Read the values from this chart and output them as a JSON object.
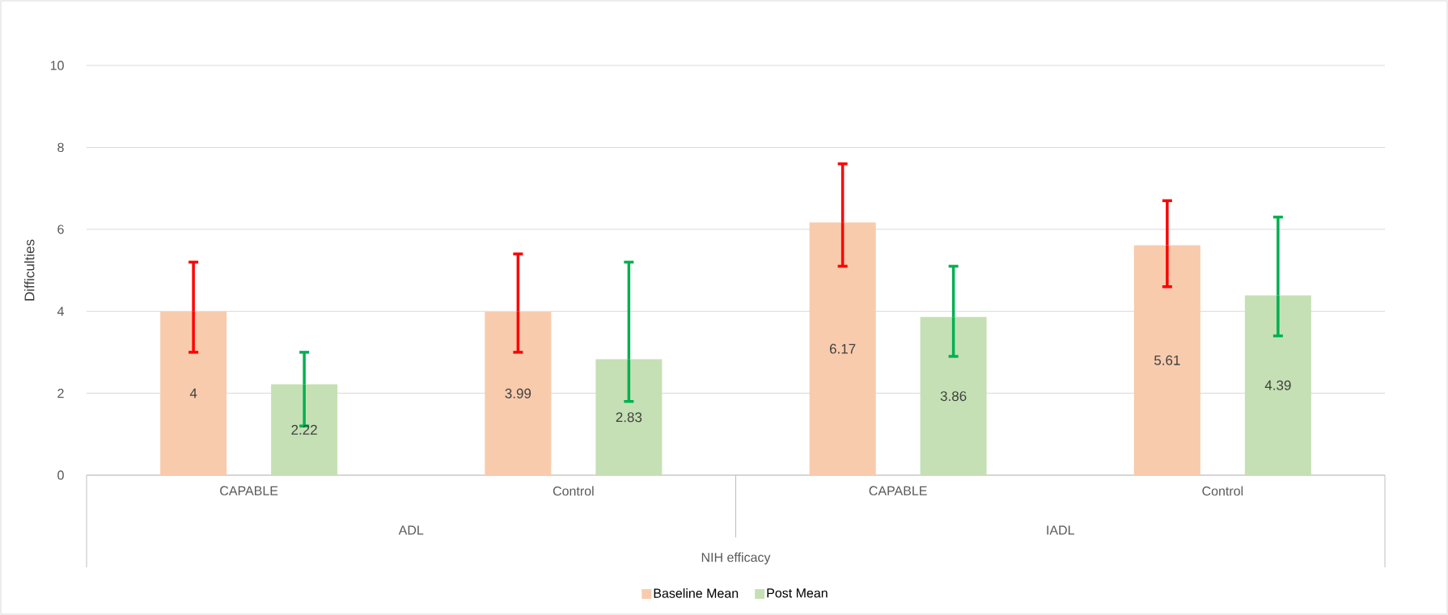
{
  "chart_data": {
    "type": "bar",
    "ylabel": "Difficulties",
    "xlabel": "NIH efficacy",
    "categories": [
      "CAPABLE",
      "Control",
      "CAPABLE",
      "Control"
    ],
    "annotations": [
      "ADL",
      "IADL"
    ],
    "series": [
      {
        "name": "Baseline Mean",
        "color": "#f8cbad",
        "values": [
          4,
          3.99,
          6.17,
          5.61
        ],
        "errors": [
          [
            3.0,
            5.2
          ],
          [
            3.0,
            5.4
          ],
          [
            5.1,
            7.6
          ],
          [
            4.6,
            6.7
          ]
        ]
      },
      {
        "name": "Post Mean",
        "color": "#c5e0b4",
        "values": [
          2.22,
          2.83,
          3.86,
          4.39
        ],
        "errors": [
          [
            1.2,
            3.0
          ],
          [
            1.8,
            5.2
          ],
          [
            2.9,
            5.1
          ],
          [
            3.4,
            6.3
          ]
        ]
      }
    ],
    "ylim": [
      0,
      10
    ],
    "yticks": [
      0,
      2,
      4,
      6,
      8,
      10
    ],
    "grid": "y",
    "legend": "bottom",
    "data_labels": true
  }
}
